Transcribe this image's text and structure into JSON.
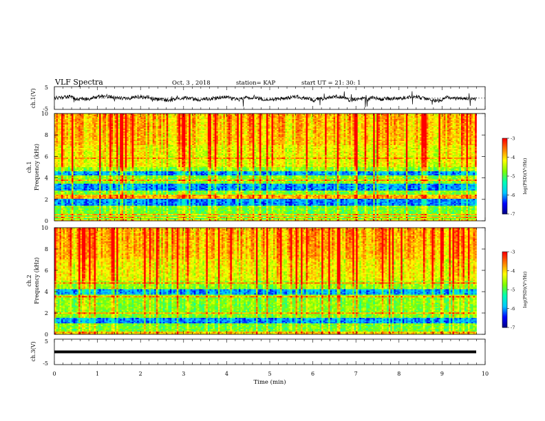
{
  "header": {
    "title": "VLF Spectra",
    "date": "Oct. 3  , 2018",
    "station": "station= KAP",
    "start_ut": "start  UT  =   21: 30: 1"
  },
  "colors": {
    "trace": "#000000",
    "colormap": [
      "#00007f",
      "#0000ff",
      "#00c8ff",
      "#00ffb4",
      "#7fff00",
      "#ffff00",
      "#ff8000",
      "#ff0000",
      "#ffffff"
    ]
  },
  "chart_data": [
    {
      "type": "line",
      "id": "ch1",
      "ylabel": "ch.1(V)",
      "ylim": [
        -5,
        5
      ],
      "yticks": [
        "5",
        "-5"
      ],
      "description_values": "noisy waveform, mostly between -2 and 2 V",
      "xlim": [
        0,
        10
      ]
    },
    {
      "type": "heatmap",
      "id": "ch1-spectrogram",
      "ylabel": "ch.1\nFrequency  (kHz)",
      "ylim": [
        0,
        10
      ],
      "yticks": [
        "0",
        "2",
        "4",
        "6",
        "8",
        "10"
      ],
      "xlim": [
        0,
        10
      ],
      "data_extent_min": 9.8,
      "colorbar": {
        "label": "log(PSD)(V²/Hz)",
        "range": [
          -7,
          -3
        ],
        "ticks": [
          "-3",
          "-4",
          "-5",
          "-6",
          "-7"
        ]
      },
      "bands_khz": [
        0.3,
        0.6,
        2.15,
        2.3,
        3.75,
        5.8
      ],
      "dark_bands_khz": [
        [
          1.4,
          2.0
        ],
        [
          2.8,
          3.4
        ],
        [
          4.2,
          4.6
        ]
      ]
    },
    {
      "type": "heatmap",
      "id": "ch2-spectrogram",
      "ylabel": "ch.2\nFrequency  (kHz)",
      "ylim": [
        0,
        10
      ],
      "yticks": [
        "0",
        "2",
        "4",
        "6",
        "8",
        "10"
      ],
      "xlim": [
        0,
        10
      ],
      "data_extent_min": 9.8,
      "colorbar": {
        "label": "log(PSD)(V²/Hz)",
        "range": [
          -7,
          -3
        ],
        "ticks": [
          "-3",
          "-4",
          "-5",
          "-6",
          "-7"
        ]
      },
      "bands_khz": [
        0.15,
        2.0,
        3.5,
        4.8
      ],
      "dark_bands_khz": [
        [
          1.0,
          1.6
        ],
        [
          3.7,
          4.2
        ]
      ]
    },
    {
      "type": "line",
      "id": "ch3",
      "ylabel": "ch.3(V)",
      "ylim": [
        -5,
        5
      ],
      "yticks": [
        "5",
        "-5"
      ],
      "xlim": [
        0,
        10
      ],
      "constant_value": 0
    }
  ],
  "xaxis": {
    "label": "Time  (min)",
    "ticks": [
      "0",
      "1",
      "2",
      "3",
      "4",
      "5",
      "6",
      "7",
      "8",
      "9",
      "10"
    ]
  }
}
